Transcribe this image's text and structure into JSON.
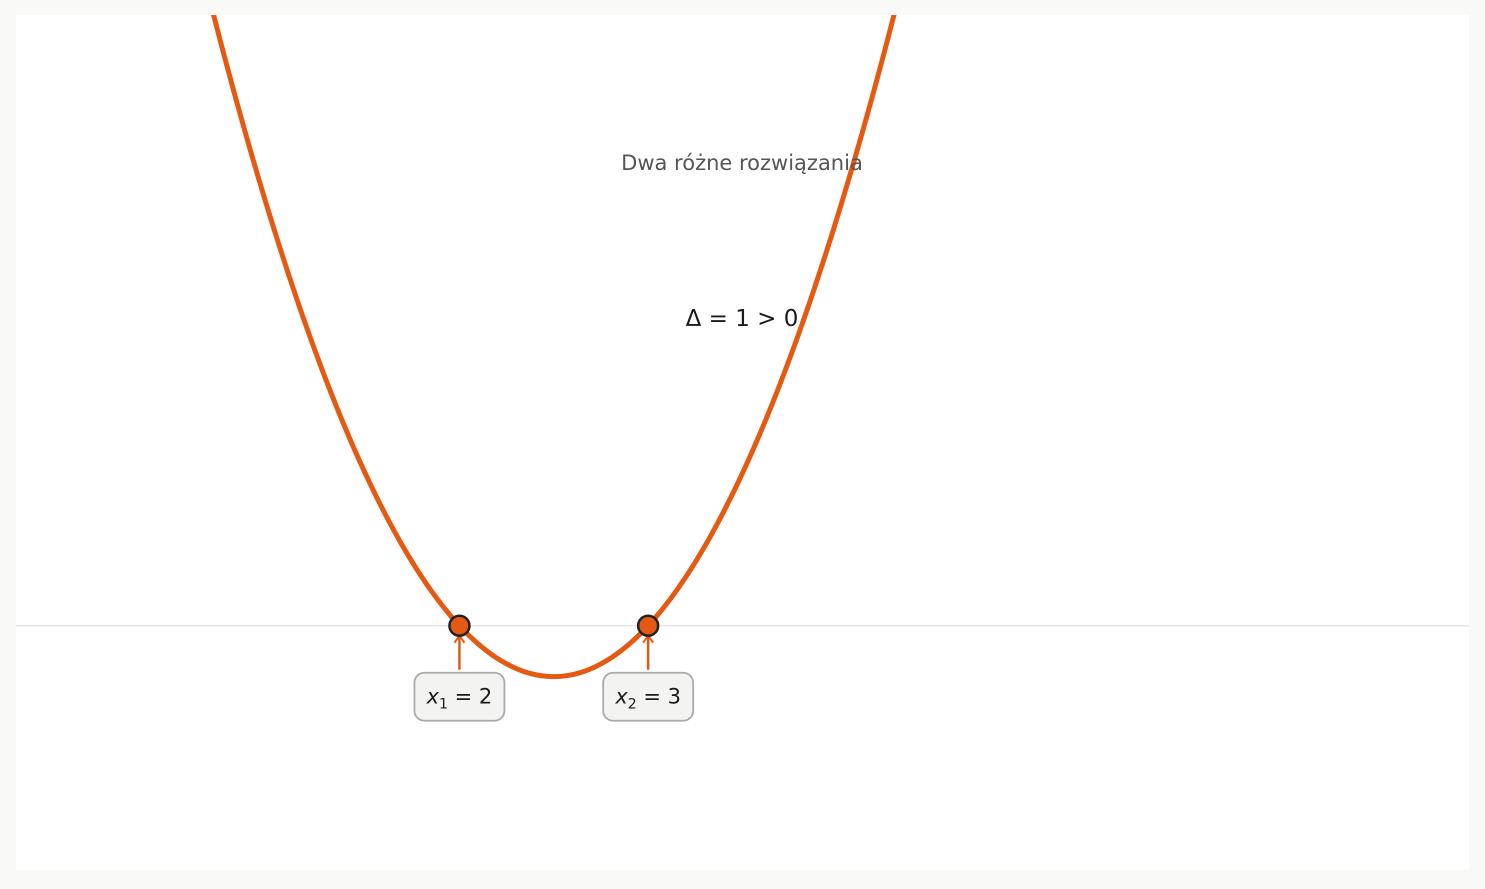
{
  "chart_data": {
    "type": "line",
    "subtitle": "Dwa różne rozwiązania",
    "annotation": "Δ = 1 > 0",
    "function": {
      "a": 1,
      "b": -5,
      "c": 6
    },
    "xlim": [
      -0.35,
      7.35
    ],
    "ylim": [
      -1.2,
      3.0
    ],
    "grid": false,
    "roots": [
      {
        "var": "x",
        "index": "1",
        "value": 2
      },
      {
        "var": "x",
        "index": "2",
        "value": 3
      }
    ],
    "curve_color": "#e55a12",
    "axis_color": "#e6e6e6",
    "label_box_fill": "#f3f3f1",
    "label_box_stroke": "#aaaaaa"
  }
}
